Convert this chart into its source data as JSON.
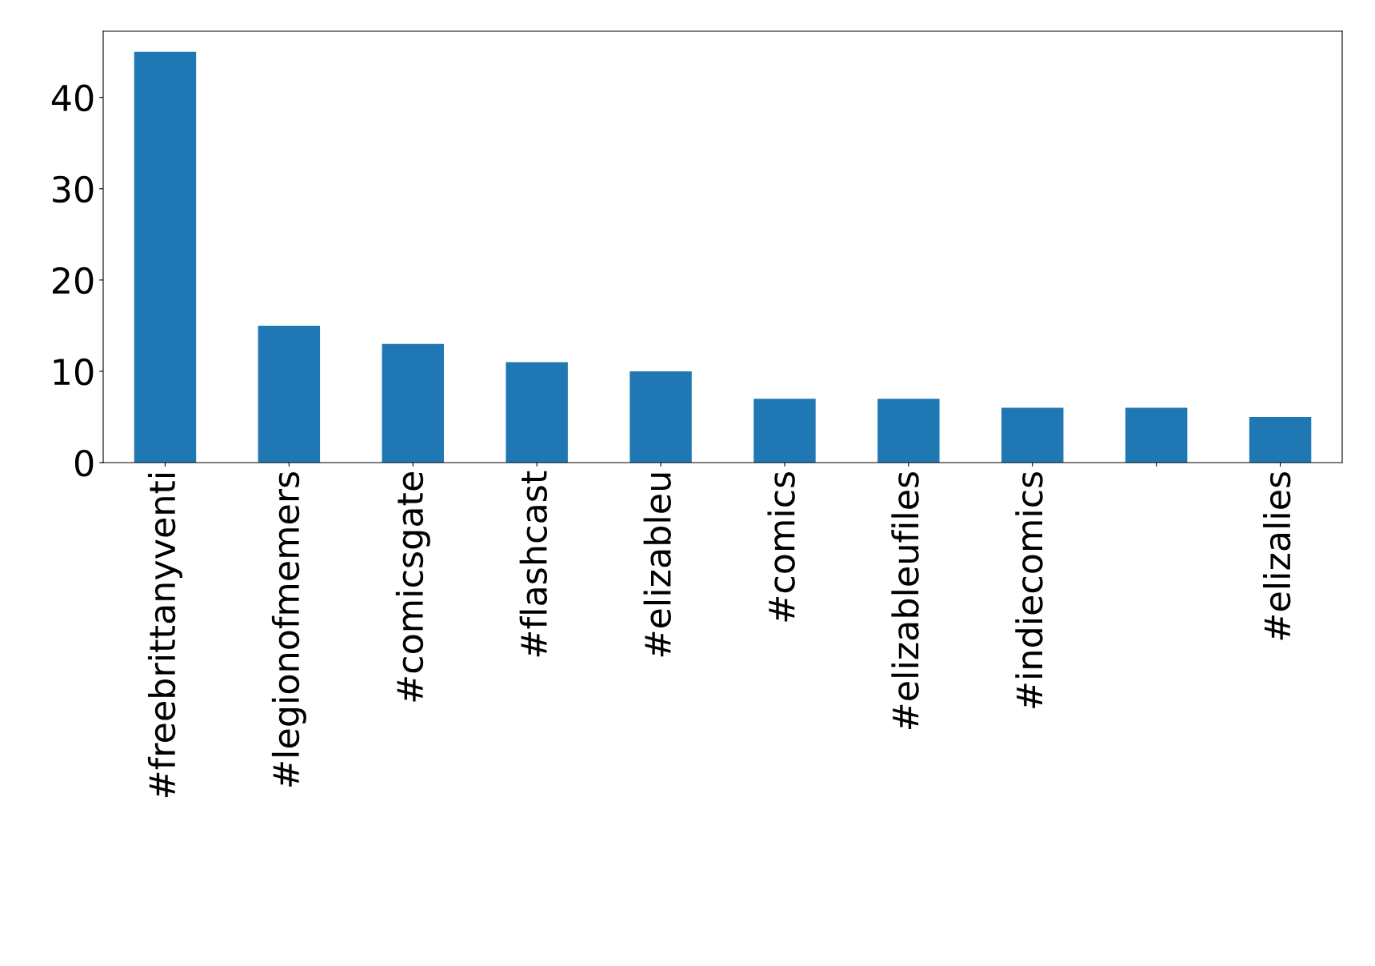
{
  "chart_data": {
    "type": "bar",
    "categories": [
      "#freebrittanyventi",
      "#legionofmemers",
      "#comicsgate",
      "#flashcast",
      "#elizableu",
      "#comics",
      "#elizableufiles",
      "#indiecomics",
      null,
      "#elizalies"
    ],
    "values": [
      45,
      15,
      13,
      11,
      10,
      7,
      7,
      6,
      6,
      5
    ],
    "color": "#1f77b4",
    "ylim": [
      0,
      47.25
    ],
    "yticks": [
      0,
      10,
      20,
      30,
      40
    ],
    "grid": false,
    "legend": false
  }
}
